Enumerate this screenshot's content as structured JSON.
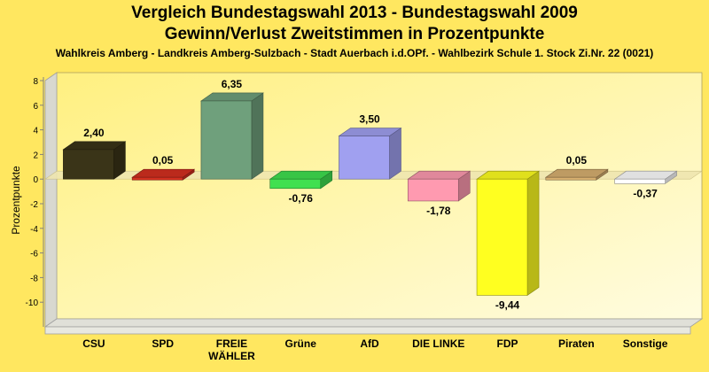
{
  "chart_data": {
    "type": "bar",
    "title": "Vergleich Bundestagswahl 2013 - Bundestagswahl 2009",
    "subtitle": "Gewinn/Verlust Zweitstimmen in Prozentpunkte",
    "caption": "Wahlkreis Amberg - Landkreis Amberg-Sulzbach - Stadt Auerbach i.d.OPf. - Wahlbezirk Schule 1. Stock Zi.Nr. 22 (0021)",
    "ylabel": "Prozentpunkte",
    "xlabel": "",
    "ylim": [
      -12,
      8
    ],
    "yticks": [
      8,
      6,
      4,
      2,
      0,
      -2,
      -4,
      -6,
      -8,
      -10
    ],
    "categories": [
      "CSU",
      "SPD",
      "FREIE WÄHLER",
      "Grüne",
      "AfD",
      "DIE LINKE",
      "FDP",
      "Piraten",
      "Sonstige"
    ],
    "values": [
      2.4,
      0.05,
      6.35,
      -0.76,
      3.5,
      -1.78,
      -9.44,
      0.05,
      -0.37
    ],
    "value_labels": [
      "2,40",
      "0,05",
      "6,35",
      "-0,76",
      "3,50",
      "-1,78",
      "-9,44",
      "0,05",
      "-0,37"
    ],
    "colors": [
      "#3A3418",
      "#D43020",
      "#6FA07C",
      "#40E050",
      "#A0A0F0",
      "#FF9AB0",
      "#FFFF20",
      "#D8B070",
      "#FFFFFF"
    ],
    "grid": false
  }
}
